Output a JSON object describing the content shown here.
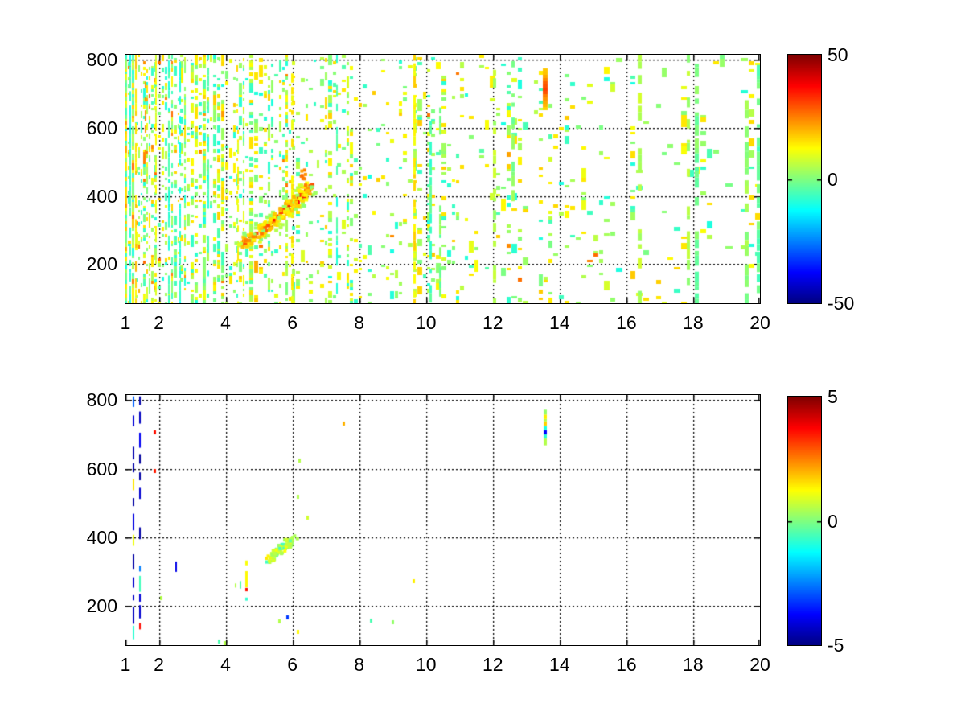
{
  "figure": {
    "background": "#ffffff",
    "title": ""
  },
  "colors": {
    "axis": "#000000",
    "grid": "#000000",
    "tick_label": "#000000"
  },
  "chart_data": [
    {
      "id": "top",
      "type": "heatmap",
      "colormap": "jet",
      "xlim": [
        1,
        20
      ],
      "ylim": [
        85,
        815
      ],
      "xticks": [
        1,
        2,
        4,
        6,
        8,
        10,
        12,
        14,
        16,
        18,
        20
      ],
      "xtick_labels": [
        "1",
        "2",
        "4",
        "6",
        "8",
        "10",
        "12",
        "14",
        "16",
        "18",
        "20"
      ],
      "yticks": [
        200,
        400,
        600,
        800
      ],
      "ytick_labels": [
        "200",
        "400",
        "600",
        "800"
      ],
      "grid_x": [
        2,
        4,
        6,
        8,
        10,
        12,
        14,
        16,
        18
      ],
      "grid_y": [
        200,
        400,
        600,
        800
      ],
      "grid_style": "dotted",
      "clim": [
        -50,
        50
      ],
      "colorbar": {
        "tick_values": [
          50,
          0,
          -50
        ],
        "tick_labels": [
          "50",
          "0",
          "-50"
        ]
      },
      "description": "Dense random speckle field (values mostly -10..+25: cyan/green/yellow), density decreasing from left (x=1) to right (x=20); thin vertical streak lines; diagonal chirp ridge reaching +35..45 (orange/red) rising from (4.5,262) to (6.6,432); hot yellow-orange vertical bar near x=13.6 between y=660 and y=775.",
      "speckle": {
        "seed": 7,
        "base": 0.4,
        "decay": 6.5,
        "floor": 0.05
      },
      "accent_lines": [
        {
          "x": 1.12,
          "t": 0.42,
          "w": 2,
          "dash": 0.15
        },
        {
          "x": 1.3,
          "t": 0.66,
          "w": 2,
          "dash": 0.35
        },
        {
          "x": 1.58,
          "t": 0.72,
          "w": 2,
          "dash": 0.6,
          "y0": 450,
          "y1": 815
        },
        {
          "x": 1.9,
          "t": 0.6,
          "w": 2,
          "dash": 0.25
        },
        {
          "x": 2.28,
          "t": 0.43,
          "w": 2,
          "dash": 0.3
        },
        {
          "x": 2.62,
          "t": 0.41,
          "w": 2,
          "dash": 0.2
        },
        {
          "x": 3.45,
          "t": 0.43,
          "w": 2,
          "dash": 0.45
        },
        {
          "x": 4.35,
          "t": 0.62,
          "w": 2,
          "dash": 0.5,
          "y0": 85,
          "y1": 620
        },
        {
          "x": 5.95,
          "t": 0.64,
          "w": 3,
          "dash": 0.35,
          "y0": 85,
          "y1": 760
        },
        {
          "x": 7.3,
          "t": 0.43,
          "w": 2,
          "dash": 0.5,
          "y0": 140,
          "y1": 815
        },
        {
          "x": 9.62,
          "t": 0.64,
          "w": 3,
          "dash": 0.12
        },
        {
          "x": 10.1,
          "t": 0.45,
          "w": 3,
          "dash": 0.25,
          "y0": 85,
          "y1": 620
        },
        {
          "x": 10.38,
          "t": 0.5,
          "w": 3,
          "dash": 0.3,
          "y0": 85,
          "y1": 660
        },
        {
          "x": 12.0,
          "t": 0.55,
          "w": 4,
          "dash": 0.55
        },
        {
          "x": 12.55,
          "t": 0.5,
          "w": 4,
          "dash": 0.5,
          "y0": 280,
          "y1": 815
        },
        {
          "x": 16.35,
          "t": 0.55,
          "w": 5,
          "dash": 0.4
        },
        {
          "x": 17.8,
          "t": 0.54,
          "w": 4,
          "dash": 0.6
        },
        {
          "x": 18.05,
          "t": 0.49,
          "w": 5,
          "dash": 0.35
        },
        {
          "x": 19.55,
          "t": 0.52,
          "w": 5,
          "dash": 0.35,
          "y0": 85,
          "y1": 700
        },
        {
          "x": 19.9,
          "t": 0.47,
          "w": 5,
          "dash": 0.3
        }
      ],
      "chirp": {
        "x0": 4.45,
        "y0": 262,
        "x1": 6.55,
        "y1": 432,
        "n": 230,
        "spur": {
          "x": 6.32,
          "y0": 430,
          "y1": 478
        }
      },
      "hot_bar": {
        "x": 13.58,
        "y0": 660,
        "y1": 775,
        "w": 6,
        "center": 718,
        "t_edge": 0.65,
        "t_peak": 0.8
      }
    },
    {
      "id": "bottom",
      "type": "heatmap",
      "colormap": "jet",
      "xlim": [
        1,
        20
      ],
      "ylim": [
        85,
        815
      ],
      "xticks": [
        1,
        2,
        4,
        6,
        8,
        10,
        12,
        14,
        16,
        18,
        20
      ],
      "xtick_labels": [
        "1",
        "2",
        "4",
        "6",
        "8",
        "10",
        "12",
        "14",
        "16",
        "18",
        "20"
      ],
      "yticks": [
        200,
        400,
        600,
        800
      ],
      "ytick_labels": [
        "200",
        "400",
        "600",
        "800"
      ],
      "grid_x": [
        2,
        4,
        6,
        8,
        10,
        12,
        14,
        16,
        18
      ],
      "grid_y": [
        200,
        400,
        600,
        800
      ],
      "grid_style": "dotted",
      "clim": [
        -5,
        5
      ],
      "colorbar": {
        "tick_values": [
          5,
          0,
          -5
        ],
        "tick_labels": [
          "5",
          "0",
          "-5"
        ]
      },
      "description": "Mostly empty field with sparse residuals: two dashed dark-blue vertical lines near x=1.2 and x=1.4 with red/orange/cyan flecks; short segmented line at x=2.5; small yellow/red bar near x=4.6; faint green diagonal streak from (4.75,292) to (6.45,432); multicolor vertical bar (green/yellow/cyan/dark-blue) at x=13.57 between y=668 and 772; isolated colored dots.",
      "seed": 11,
      "vlines": [
        {
          "x": 1.21,
          "w": 2,
          "fill": 0.72
        },
        {
          "x": 1.42,
          "w": 2,
          "fill": 0.85
        },
        {
          "x": 2.5,
          "w": 2,
          "fill": 0.55,
          "ranges": [
            [
              268,
              372
            ],
            [
              506,
              534
            ]
          ]
        }
      ],
      "bars": [
        {
          "x": 4.62,
          "w": 3,
          "segments": [
            [
              318,
              332,
              0.62
            ],
            [
              254,
              301,
              0.63
            ],
            [
              242,
              252,
              0.86
            ],
            [
              215,
              224,
              0.42
            ]
          ]
        },
        {
          "x": 4.45,
          "w": 2,
          "segments": [
            [
              250,
              272,
              0.46
            ]
          ]
        },
        {
          "x": 4.3,
          "w": 2,
          "segments": [
            [
              253,
              265,
              0.55
            ]
          ]
        },
        {
          "x": 13.57,
          "w": 4,
          "segments": [
            [
              668,
              688,
              0.55
            ],
            [
              688,
              700,
              0.42
            ],
            [
              700,
              712,
              0.13
            ],
            [
              712,
              725,
              0.4
            ],
            [
              725,
              738,
              0.67
            ],
            [
              738,
              745,
              0.55
            ],
            [
              745,
              758,
              0.64
            ],
            [
              758,
              772,
              0.52
            ]
          ]
        }
      ],
      "streak": {
        "x0": 4.75,
        "y0": 292,
        "x1": 6.45,
        "y1": 432,
        "n": 110
      },
      "dots": [
        [
          1.87,
          706,
          0.86
        ],
        [
          1.87,
          595,
          0.85
        ],
        [
          2.06,
          224,
          0.55
        ],
        [
          3.8,
          96,
          0.45
        ],
        [
          3.95,
          93,
          0.55
        ],
        [
          5.6,
          155,
          0.55
        ],
        [
          5.85,
          166,
          0.18
        ],
        [
          6.16,
          124,
          0.63
        ],
        [
          8.35,
          158,
          0.45
        ],
        [
          9.0,
          152,
          0.52
        ],
        [
          9.63,
          272,
          0.64
        ],
        [
          7.53,
          733,
          0.7
        ],
        [
          6.2,
          626,
          0.55
        ],
        [
          6.16,
          520,
          0.55
        ],
        [
          6.45,
          459,
          0.58
        ]
      ]
    }
  ]
}
